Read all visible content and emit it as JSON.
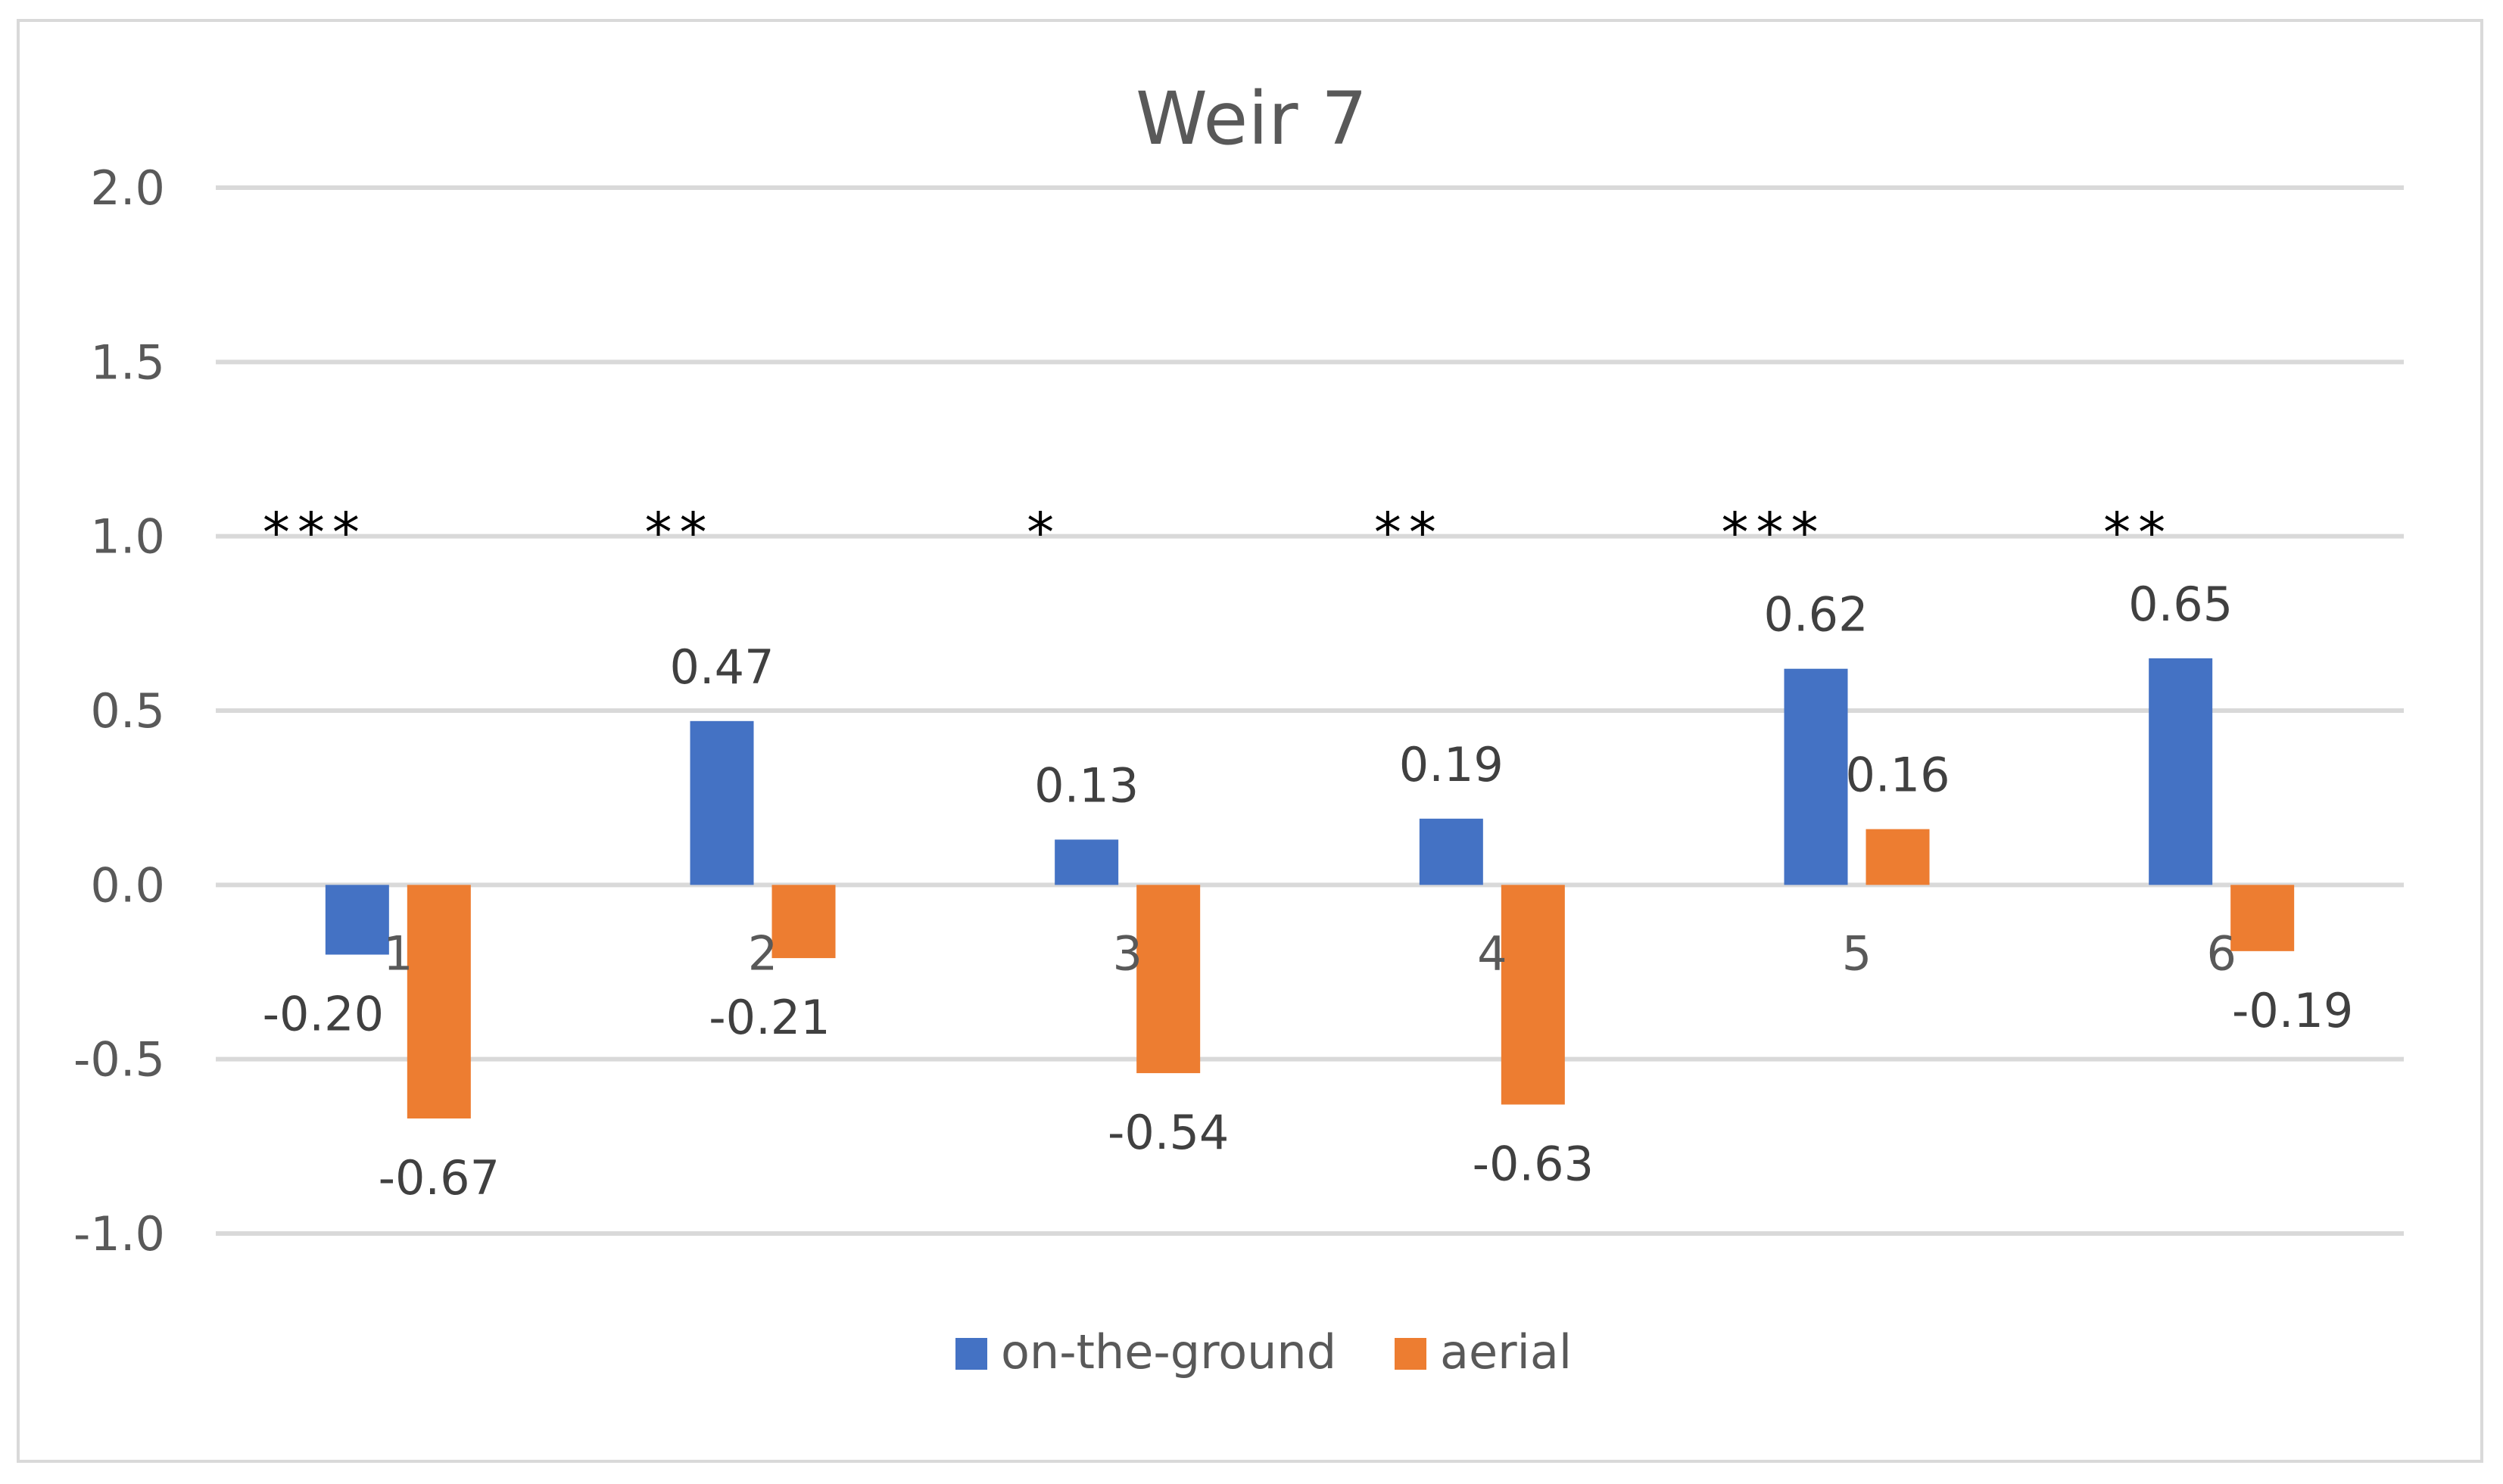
{
  "chart_data": {
    "type": "bar",
    "title": "Weir 7",
    "xlabel": "",
    "ylabel": "",
    "ylim": [
      -1.0,
      2.0
    ],
    "yticks": [
      "-1.0",
      "-0.5",
      "0.0",
      "0.5",
      "1.0",
      "1.5",
      "2.0"
    ],
    "grid": true,
    "legend_position": "bottom",
    "categories": [
      "1",
      "2",
      "3",
      "4",
      "5",
      "6"
    ],
    "series": [
      {
        "name": "on-the-ground",
        "color": "#4472C4",
        "values": [
          -0.2,
          0.47,
          0.13,
          0.19,
          0.62,
          0.65
        ],
        "labels": [
          "-0.20",
          "0.47",
          "0.13",
          "0.19",
          "0.62",
          "0.65"
        ]
      },
      {
        "name": "aerial",
        "color": "#ED7D31",
        "values": [
          -0.67,
          -0.21,
          -0.54,
          -0.63,
          0.16,
          -0.19
        ],
        "labels": [
          "-0.67",
          "-0.21",
          "-0.54",
          "-0.63",
          "0.16",
          "-0.19"
        ]
      }
    ],
    "significance": [
      "***",
      "**",
      "*",
      "**",
      "***",
      "**"
    ]
  }
}
